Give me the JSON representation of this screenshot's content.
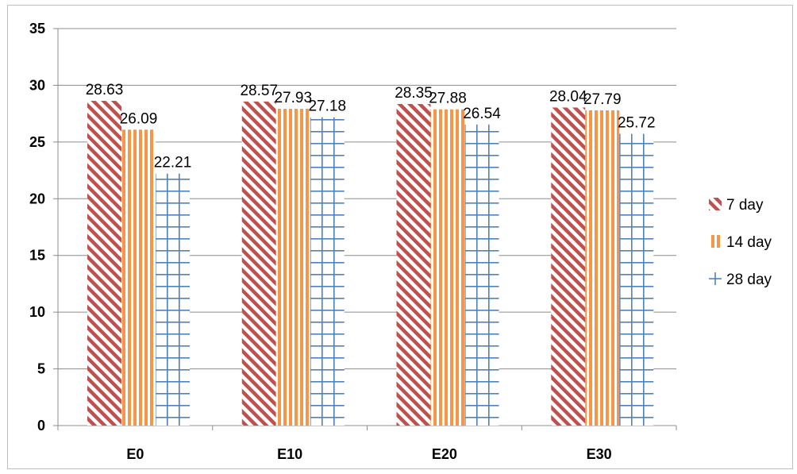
{
  "chart_data": {
    "type": "bar",
    "categories": [
      "E0",
      "E10",
      "E20",
      "E30"
    ],
    "series": [
      {
        "name": "7 day",
        "values": [
          28.63,
          28.57,
          28.35,
          28.04
        ],
        "pattern": "diagonal-stripes",
        "color": "#c0504d"
      },
      {
        "name": "14 day",
        "values": [
          26.09,
          27.93,
          27.88,
          27.79
        ],
        "pattern": "vertical-stripes",
        "color": "#f79646"
      },
      {
        "name": "28 day",
        "values": [
          22.21,
          27.18,
          26.54,
          25.72
        ],
        "pattern": "grid",
        "color": "#4f81bd"
      }
    ],
    "data_labels": [
      [
        "28.63",
        "28.57",
        "28.35",
        "28.04"
      ],
      [
        "26.09",
        "27.93",
        "27.88",
        "27.79"
      ],
      [
        "22.21",
        "27.18",
        "26.54",
        "25.72"
      ]
    ],
    "y_ticks": [
      "0",
      "5",
      "10",
      "15",
      "20",
      "25",
      "30",
      "35"
    ],
    "ylim": [
      0,
      35
    ],
    "grid": true,
    "legend_position": "right",
    "title": "",
    "xlabel": "",
    "ylabel": ""
  }
}
